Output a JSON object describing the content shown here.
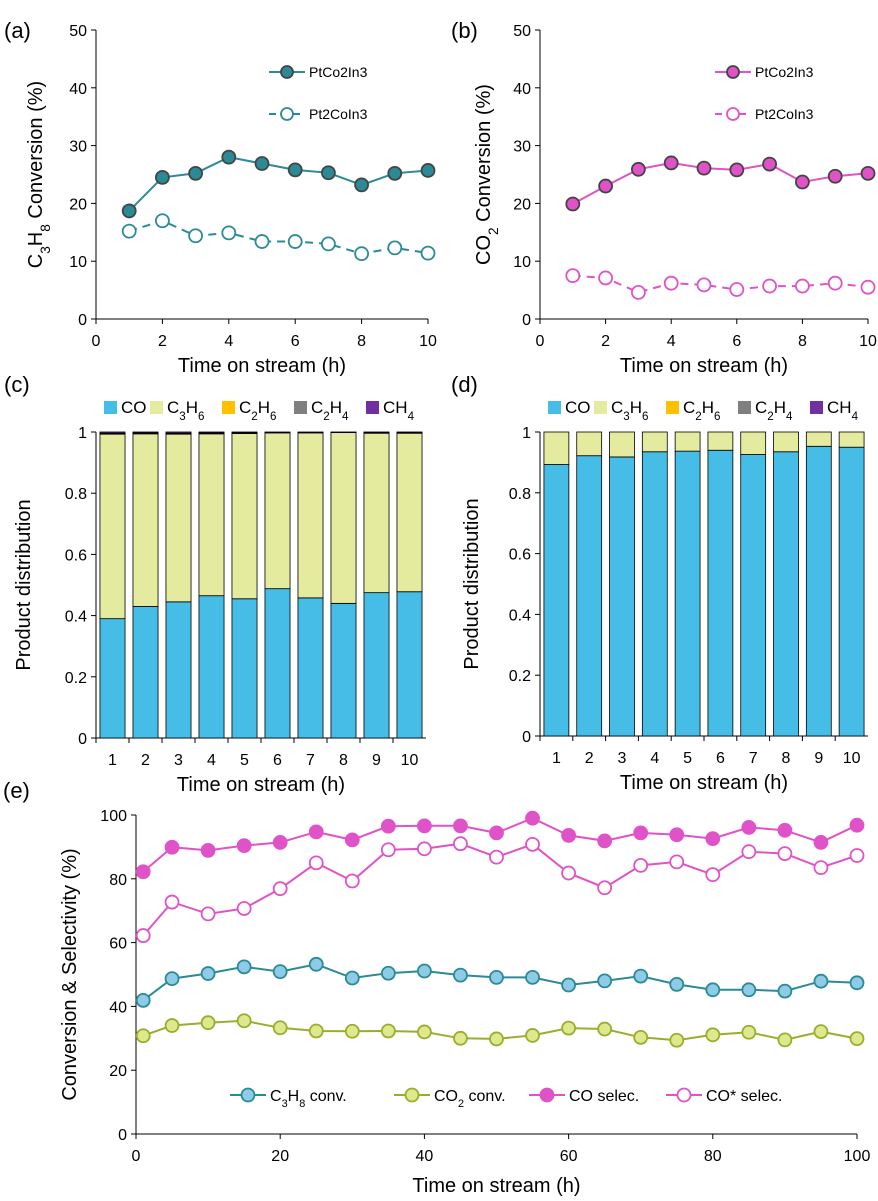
{
  "chart_data": [
    {
      "panel": "(a)",
      "type": "line",
      "xlabel": "Time on stream (h)",
      "ylabel": "C3H8 Conversion (%)",
      "xlim": [
        0,
        10
      ],
      "ylim": [
        0,
        50
      ],
      "xticks": [
        "0",
        "2",
        "4",
        "6",
        "8",
        "10"
      ],
      "yticks": [
        "0",
        "10",
        "20",
        "30",
        "40",
        "50"
      ],
      "legend_position": "top-right",
      "x": [
        1,
        2,
        3,
        4,
        5,
        6,
        7,
        8,
        9,
        10
      ],
      "series": [
        {
          "name": "PtCo2In3",
          "color": "#2a8a95",
          "marker": "filled",
          "dash": "solid",
          "values": [
            18.7,
            24.5,
            25.2,
            28.0,
            26.9,
            25.8,
            25.3,
            23.2,
            25.2,
            25.7
          ]
        },
        {
          "name": "Pt2CoIn3",
          "color": "#2a8a95",
          "marker": "open",
          "dash": "dashed",
          "values": [
            15.2,
            17.0,
            14.4,
            14.9,
            13.4,
            13.4,
            13.0,
            11.3,
            12.3,
            11.4
          ]
        }
      ]
    },
    {
      "panel": "(b)",
      "type": "line",
      "xlabel": "Time on stream (h)",
      "ylabel": "CO2 Conversion (%)",
      "xlim": [
        0,
        10
      ],
      "ylim": [
        0,
        50
      ],
      "xticks": [
        "0",
        "2",
        "4",
        "6",
        "8",
        "10"
      ],
      "yticks": [
        "0",
        "10",
        "20",
        "30",
        "40",
        "50"
      ],
      "legend_position": "top-right",
      "x": [
        1,
        2,
        3,
        4,
        5,
        6,
        7,
        8,
        9,
        10
      ],
      "series": [
        {
          "name": "PtCo2In3",
          "color": "#e052c8",
          "marker": "filled",
          "dash": "solid",
          "values": [
            19.9,
            23.0,
            25.9,
            27.0,
            26.1,
            25.8,
            26.8,
            23.7,
            24.7,
            25.2
          ]
        },
        {
          "name": "Pt2CoIn3",
          "color": "#e052c8",
          "marker": "open",
          "dash": "dashed",
          "values": [
            7.5,
            7.1,
            4.6,
            6.2,
            5.9,
            5.1,
            5.7,
            5.7,
            6.2,
            5.5
          ]
        }
      ]
    },
    {
      "panel": "(c)",
      "type": "bar",
      "stacked": true,
      "xlabel": "Time on stream (h)",
      "ylabel": "Product distribution",
      "ylim": [
        0,
        1
      ],
      "yticks": [
        "0",
        "0.2",
        "0.4",
        "0.6",
        "0.8",
        "1"
      ],
      "categories": [
        "1",
        "2",
        "3",
        "4",
        "5",
        "6",
        "7",
        "8",
        "9",
        "10"
      ],
      "legend_position": "top",
      "series": [
        {
          "name": "CO",
          "color": "#45bde6",
          "values": [
            0.39,
            0.43,
            0.445,
            0.465,
            0.455,
            0.488,
            0.458,
            0.44,
            0.475,
            0.478
          ]
        },
        {
          "name": "C3H6",
          "color": "#e4eb9f",
          "values": [
            0.603,
            0.564,
            0.548,
            0.529,
            0.54,
            0.509,
            0.539,
            0.558,
            0.521,
            0.518
          ]
        },
        {
          "name": "C2H6",
          "color": "#ffc000",
          "values": [
            0.001,
            0.001,
            0.001,
            0.001,
            0.001,
            0.001,
            0.001,
            0.001,
            0.001,
            0.001
          ]
        },
        {
          "name": "C2H4",
          "color": "#7f7f7f",
          "values": [
            0.002,
            0.002,
            0.002,
            0.002,
            0.002,
            0.0,
            0.0,
            0.0,
            0.002,
            0.002
          ]
        },
        {
          "name": "CH4",
          "color": "#7030a0",
          "values": [
            0.004,
            0.003,
            0.004,
            0.003,
            0.002,
            0.002,
            0.002,
            0.001,
            0.001,
            0.001
          ]
        }
      ]
    },
    {
      "panel": "(d)",
      "type": "bar",
      "stacked": true,
      "xlabel": "Time on stream (h)",
      "ylabel": "Product distribution",
      "ylim": [
        0,
        1
      ],
      "yticks": [
        "0",
        "0.2",
        "0.4",
        "0.6",
        "0.8",
        "1"
      ],
      "categories": [
        "1",
        "2",
        "3",
        "4",
        "5",
        "6",
        "7",
        "8",
        "9",
        "10"
      ],
      "legend_position": "top",
      "series": [
        {
          "name": "CO",
          "color": "#45bde6",
          "values": [
            0.893,
            0.922,
            0.918,
            0.935,
            0.937,
            0.94,
            0.926,
            0.935,
            0.953,
            0.95
          ]
        },
        {
          "name": "C3H6",
          "color": "#e4eb9f",
          "values": [
            0.107,
            0.078,
            0.082,
            0.065,
            0.063,
            0.06,
            0.074,
            0.065,
            0.047,
            0.05
          ]
        },
        {
          "name": "C2H6",
          "color": "#ffc000",
          "values": [
            0,
            0,
            0,
            0,
            0,
            0,
            0,
            0,
            0,
            0
          ]
        },
        {
          "name": "C2H4",
          "color": "#7f7f7f",
          "values": [
            0,
            0,
            0,
            0,
            0,
            0,
            0,
            0,
            0,
            0
          ]
        },
        {
          "name": "CH4",
          "color": "#7030a0",
          "values": [
            0,
            0,
            0,
            0,
            0,
            0,
            0,
            0,
            0,
            0
          ]
        }
      ]
    },
    {
      "panel": "(e)",
      "type": "line",
      "xlabel": "Time on stream (h)",
      "ylabel": "Conversion & Selectivity (%)",
      "xlim": [
        0,
        100
      ],
      "ylim": [
        0,
        100
      ],
      "xticks": [
        "0",
        "20",
        "40",
        "60",
        "80",
        "100"
      ],
      "yticks": [
        "0",
        "20",
        "40",
        "60",
        "80",
        "100"
      ],
      "legend_position": "bottom",
      "x": [
        1,
        5,
        10,
        15,
        20,
        25,
        30,
        35,
        40,
        45,
        50,
        55,
        60,
        65,
        70,
        75,
        80,
        85,
        90,
        95,
        100
      ],
      "series": [
        {
          "name": "C3H8 conv.",
          "color": "#2a8a95",
          "fill": "#8dcbe6",
          "marker": "filled",
          "values": [
            41.9,
            48.7,
            50.3,
            52.4,
            50.9,
            53.2,
            48.9,
            50.4,
            51.1,
            49.8,
            49.1,
            49.1,
            46.7,
            48.0,
            49.5,
            46.9,
            45.2,
            45.2,
            44.8,
            47.9,
            47.4
          ]
        },
        {
          "name": "CO2 conv.",
          "color": "#9aad2c",
          "fill": "#dfe88c",
          "marker": "filled",
          "values": [
            30.8,
            34.0,
            34.9,
            35.5,
            33.3,
            32.3,
            32.2,
            32.3,
            32.0,
            30.0,
            29.8,
            30.9,
            33.2,
            32.9,
            30.3,
            29.4,
            31.1,
            31.9,
            29.5,
            32.1,
            29.9
          ]
        },
        {
          "name": "CO selec.",
          "color": "#e052c8",
          "fill": "#e052c8",
          "marker": "filled",
          "values": [
            82.2,
            89.9,
            88.9,
            90.4,
            91.4,
            94.7,
            92.2,
            96.5,
            96.6,
            96.6,
            94.4,
            99.0,
            93.6,
            91.9,
            94.4,
            93.8,
            92.6,
            96.1,
            95.2,
            91.4,
            96.8
          ]
        },
        {
          "name": "CO* selec.",
          "color": "#e052c8",
          "fill": "#ffffff",
          "marker": "open",
          "values": [
            62.2,
            72.7,
            69.0,
            70.7,
            76.9,
            85.0,
            79.3,
            89.1,
            89.4,
            91.0,
            86.8,
            90.8,
            81.8,
            77.2,
            84.2,
            85.3,
            81.3,
            88.5,
            87.9,
            83.5,
            87.3
          ]
        }
      ]
    }
  ]
}
